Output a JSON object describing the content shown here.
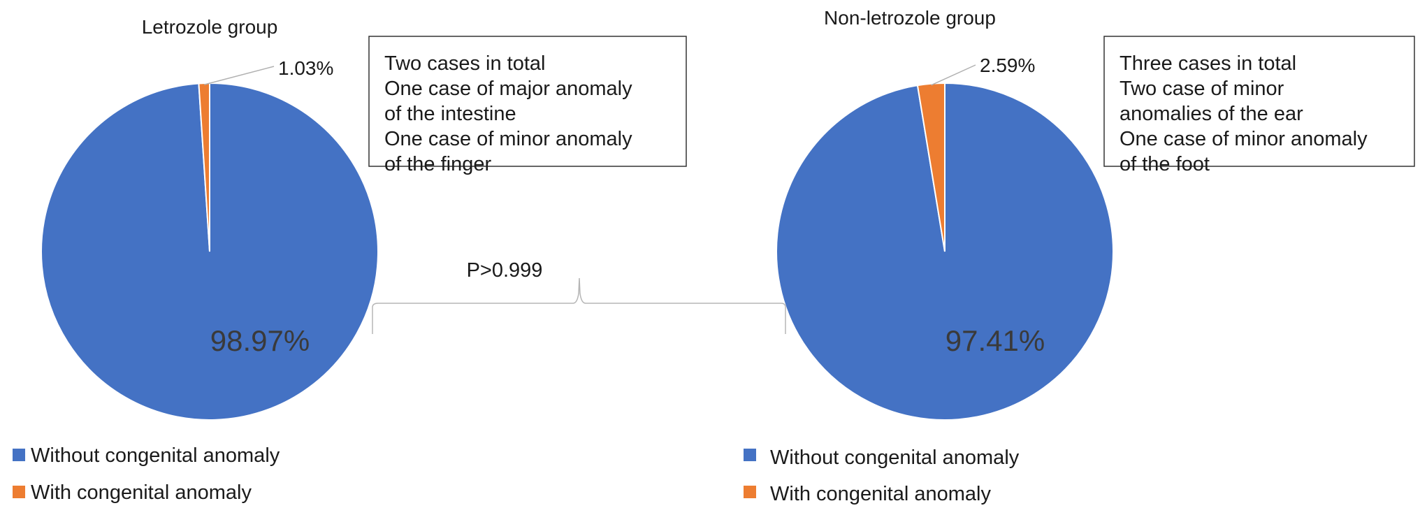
{
  "chart_data": [
    {
      "type": "pie",
      "title": "Letrozole group",
      "categories": [
        "Without congenital anomaly",
        "With congenital anomaly"
      ],
      "values": [
        98.97,
        1.03
      ],
      "labels": [
        "98.97%",
        "1.03%"
      ],
      "colors": [
        "#4472C4",
        "#ED7D31"
      ],
      "annotation": [
        "Two cases in total",
        "One case of major anomaly",
        "of the intestine",
        "One case of minor anomaly",
        "of the finger"
      ],
      "legend": "bottom-left"
    },
    {
      "type": "pie",
      "title": "Non-letrozole group",
      "categories": [
        "Without congenital anomaly",
        "With congenital anomaly"
      ],
      "values": [
        97.41,
        2.59
      ],
      "labels": [
        "97.41%",
        "2.59%"
      ],
      "colors": [
        "#4472C4",
        "#ED7D31"
      ],
      "annotation": [
        "Three cases in total",
        "Two case of minor",
        "anomalies of the ear",
        "One case of minor anomaly",
        "of the foot"
      ],
      "legend": "bottom-left"
    }
  ],
  "comparison": {
    "label": "P>0.999"
  }
}
